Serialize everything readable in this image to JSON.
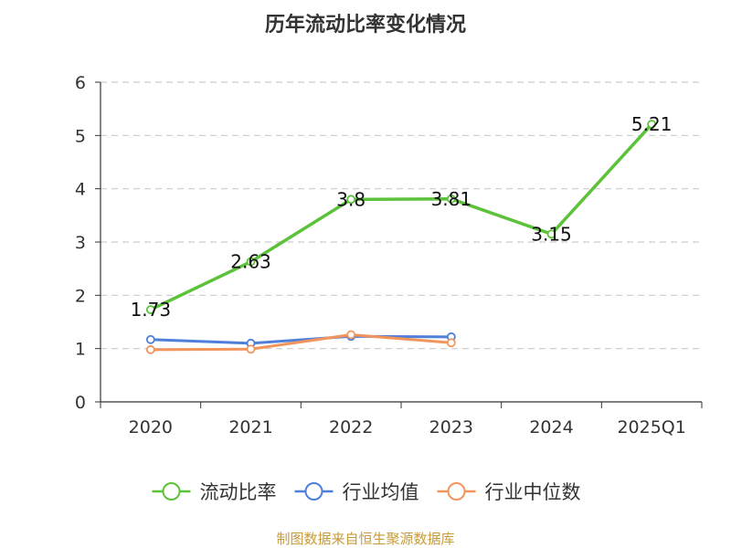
{
  "chart_data": {
    "type": "line",
    "title": "历年流动比率变化情况",
    "xlabel": "",
    "ylabel": "",
    "categories": [
      "2020",
      "2021",
      "2022",
      "2023",
      "2024",
      "2025Q1"
    ],
    "ylim": [
      0,
      6
    ],
    "yticks": [
      "0",
      "1",
      "2",
      "3",
      "4",
      "5",
      "6"
    ],
    "grid": true,
    "legend_position": "bottom",
    "series": [
      {
        "name": "流动比率",
        "color": "#5cc23a",
        "values": [
          1.73,
          2.63,
          3.8,
          3.81,
          3.15,
          5.21
        ],
        "labels": [
          "1.73",
          "2.63",
          "3.8",
          "3.81",
          "3.15",
          "5.21"
        ],
        "show_labels": true
      },
      {
        "name": "行业均值",
        "color": "#4e7fd9",
        "values": [
          1.17,
          1.1,
          1.23,
          1.22,
          null,
          null
        ],
        "show_labels": false
      },
      {
        "name": "行业中位数",
        "color": "#f2955c",
        "values": [
          0.98,
          0.99,
          1.26,
          1.11,
          null,
          null
        ],
        "show_labels": false
      }
    ]
  },
  "source_text": "制图数据来自恒生聚源数据库",
  "colors": {
    "source": "#c79a3a",
    "axis": "#333333",
    "grid": "#cccccc"
  }
}
